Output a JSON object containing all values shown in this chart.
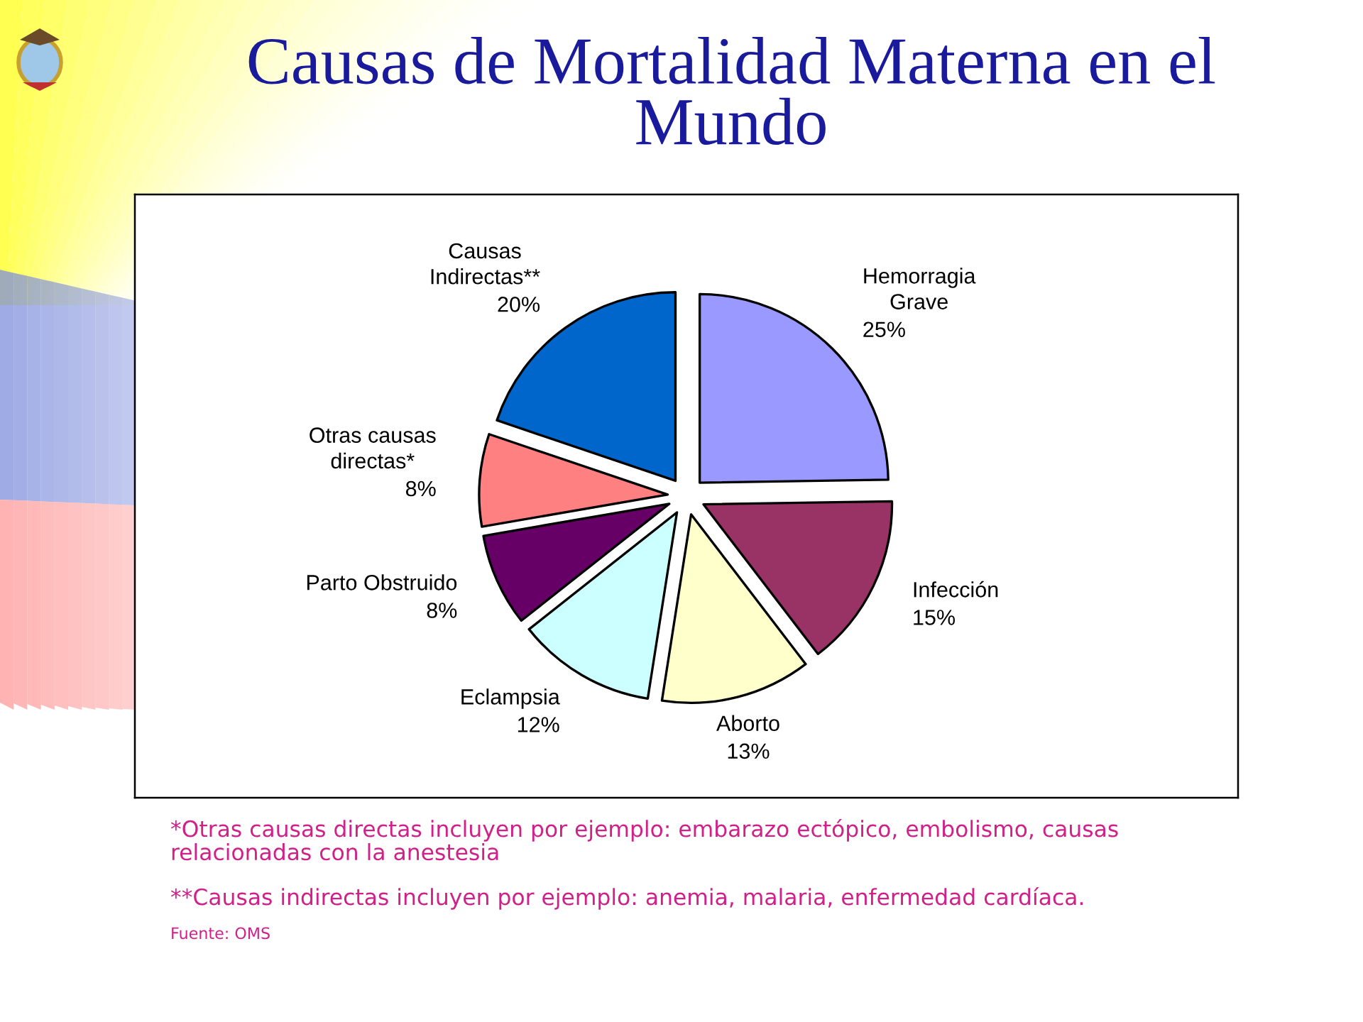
{
  "chart_data": {
    "type": "pie",
    "title": "Causas de Mortalidad Materna en el\nMundo",
    "categories": [
      "Hemorragia\nGrave",
      "Infección",
      "Aborto",
      "Eclampsia",
      "Parto Obstruido",
      "Otras causas\ndirectas*",
      "Causas\nIndirectas**"
    ],
    "values": [
      25,
      15,
      13,
      12,
      8,
      8,
      20
    ],
    "value_labels": [
      "25%",
      "15%",
      "13%",
      "12%",
      "8%",
      "8%",
      "20%"
    ],
    "colors": [
      "#9999ff",
      "#993366",
      "#ffffcc",
      "#ccffff",
      "#660066",
      "#ff8080",
      "#0066cc"
    ],
    "annotations": [
      "*Otras causas directas incluyen por ejemplo: embarazo ectópico, embolismo, causas\nrelacionadas con la anestesia",
      "**Causas indirectas incluyen por ejemplo: anemia, malaria, enfermedad cardíaca.",
      "Fuente: OMS"
    ]
  }
}
